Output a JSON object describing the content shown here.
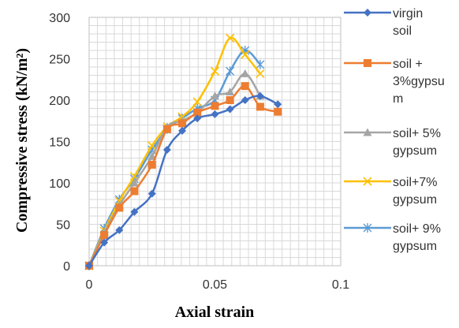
{
  "chart_data": {
    "type": "line",
    "title": "",
    "xlabel": "Axial strain",
    "ylabel": "Compressive stress (kN/m²)",
    "xlim": [
      0,
      0.1
    ],
    "ylim": [
      0,
      300
    ],
    "x_ticks": [
      "0",
      "0.05",
      "0.1"
    ],
    "y_ticks": [
      "0",
      "50",
      "100",
      "150",
      "200",
      "250",
      "300"
    ],
    "grid": true,
    "legend_position": "right",
    "series": [
      {
        "name_lines": [
          "virgin",
          "soil"
        ],
        "color": "#4472C4",
        "marker": "diamond",
        "x": [
          0,
          0.006,
          0.012,
          0.018,
          0.025,
          0.031,
          0.037,
          0.043,
          0.05,
          0.056,
          0.062,
          0.068,
          0.075
        ],
        "y": [
          0,
          28,
          43,
          65,
          87,
          140,
          163,
          178,
          183,
          189,
          200,
          205,
          195
        ]
      },
      {
        "name_lines": [
          "soil +",
          "3%gypsu",
          "m"
        ],
        "color": "#ED7D31",
        "marker": "square",
        "x": [
          0,
          0.006,
          0.012,
          0.018,
          0.025,
          0.031,
          0.037,
          0.043,
          0.05,
          0.056,
          0.062,
          0.068,
          0.075
        ],
        "y": [
          0,
          37,
          70,
          90,
          122,
          165,
          172,
          185,
          193,
          200,
          217,
          192,
          186
        ]
      },
      {
        "name_lines": [
          "soil+ 5%",
          "gypsum"
        ],
        "color": "#A5A5A5",
        "marker": "triangle",
        "x": [
          0,
          0.006,
          0.012,
          0.018,
          0.025,
          0.031,
          0.037,
          0.043,
          0.05,
          0.056,
          0.062,
          0.068
        ],
        "y": [
          0,
          40,
          73,
          100,
          132,
          168,
          175,
          185,
          205,
          210,
          232,
          205
        ]
      },
      {
        "name_lines": [
          "soil+7%",
          "gypsum"
        ],
        "color": "#FFC000",
        "marker": "x",
        "x": [
          0,
          0.006,
          0.012,
          0.018,
          0.025,
          0.031,
          0.037,
          0.043,
          0.05,
          0.056,
          0.062,
          0.068
        ],
        "y": [
          0,
          42,
          78,
          108,
          145,
          168,
          180,
          198,
          235,
          275,
          255,
          232
        ]
      },
      {
        "name_lines": [
          "soil+ 9%",
          "gypsum"
        ],
        "color": "#5B9BD5",
        "marker": "star",
        "x": [
          0,
          0.006,
          0.012,
          0.018,
          0.025,
          0.031,
          0.037,
          0.043,
          0.05,
          0.056,
          0.062,
          0.068
        ],
        "y": [
          0,
          45,
          80,
          105,
          140,
          165,
          178,
          190,
          200,
          235,
          260,
          243
        ]
      }
    ]
  }
}
